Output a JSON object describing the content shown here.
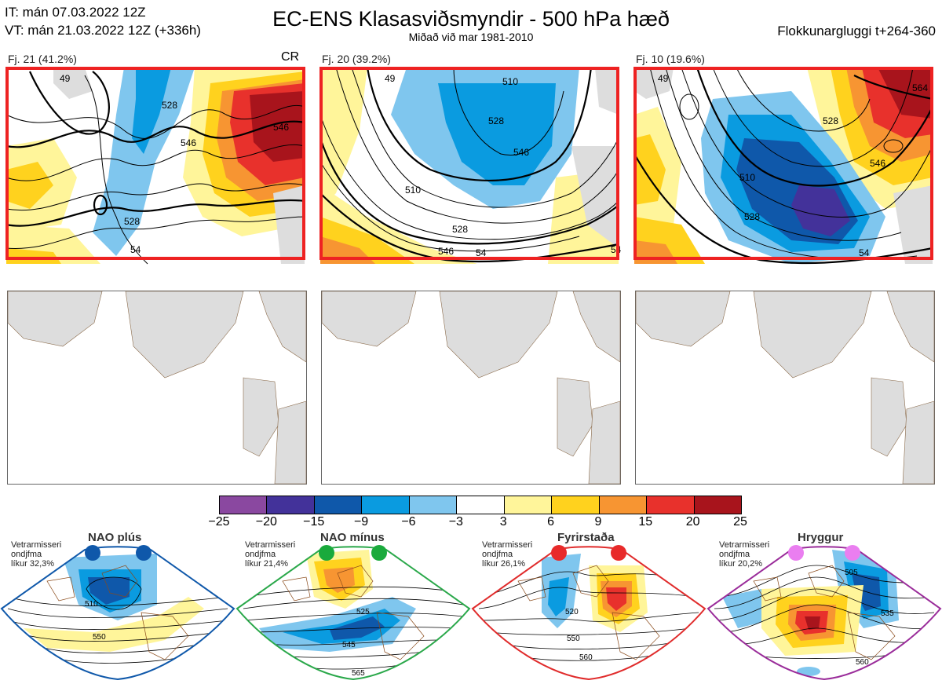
{
  "header": {
    "it_line": "IT: mán 07.03.2022 12Z",
    "vt_line": "VT: mán 21.03.2022 12Z  (+336h)",
    "title": "EC-ENS Klasasviðsmyndir - 500 hPa hæð",
    "subtitle": "Miðað við mar 1981-2010",
    "window": "Flokkunargluggi t+264-360"
  },
  "clusters": [
    {
      "label": "Fj. 21 (41.2%)",
      "tag": "CR",
      "contours": [
        "528",
        "546",
        "546",
        "528",
        "54",
        "49"
      ]
    },
    {
      "label": "Fj. 20 (39.2%)",
      "tag": "",
      "contours": [
        "510",
        "528",
        "546",
        "510",
        "528",
        "546",
        "54",
        "54",
        "49"
      ]
    },
    {
      "label": "Fj. 10 (19.6%)",
      "tag": "",
      "contours": [
        "564",
        "528",
        "546",
        "510",
        "528",
        "54",
        "49"
      ]
    }
  ],
  "colorbar": {
    "colors": [
      "#8a48a0",
      "#43329a",
      "#0f58aa",
      "#0a9be0",
      "#7fc6ee",
      "#ffffff",
      "#fff59a",
      "#ffd21e",
      "#f79532",
      "#e8312c",
      "#a8141c"
    ],
    "ticks": [
      "−25",
      "−20",
      "−15",
      "−9",
      "−6",
      "−3",
      "3",
      "6",
      "9",
      "15",
      "20",
      "25"
    ]
  },
  "regimes": [
    {
      "name": "NAO plús",
      "info": [
        "Vetrarmisseri",
        "ondjfma",
        "líkur 32,3%"
      ],
      "dot_color": "#0f58aa",
      "border_color": "#0f58aa",
      "contours": [
        "510",
        "550"
      ]
    },
    {
      "name": "NAO mínus",
      "info": [
        "Vetrarmisseri",
        "ondjfma",
        "líkur 21,4%"
      ],
      "dot_color": "#1aaa3c",
      "border_color": "#2aa84a",
      "contours": [
        "525",
        "545",
        "565"
      ]
    },
    {
      "name": "Fyrirstaða",
      "info": [
        "Vetrarmisseri",
        "ondjfma",
        "líkur 26,1%"
      ],
      "dot_color": "#e82a2a",
      "border_color": "#e02b2b",
      "contours": [
        "520",
        "550",
        "560"
      ]
    },
    {
      "name": "Hryggur",
      "info": [
        "Vetrarmisseri",
        "ondjfma",
        "líkur 20,2%"
      ],
      "dot_color": "#ea7ef0",
      "border_color": "#9a2c9a",
      "contours": [
        "505",
        "535",
        "560"
      ]
    }
  ]
}
